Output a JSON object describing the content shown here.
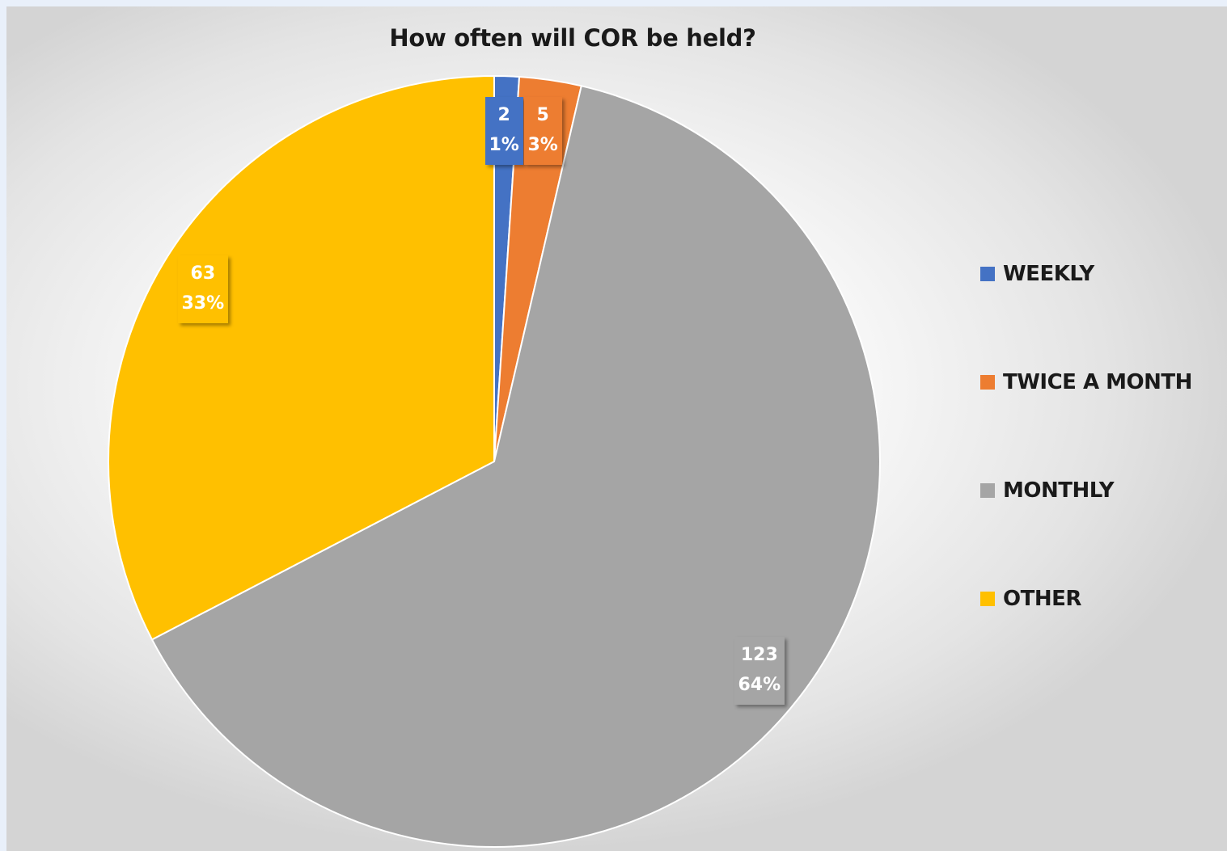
{
  "chart_data": {
    "type": "pie",
    "title": "How often will COR be held?",
    "slices": [
      {
        "name": "WEEKLY",
        "value": 2,
        "percent_label": "1%",
        "color": "#4472c4"
      },
      {
        "name": "TWICE A MONTH",
        "value": 5,
        "percent_label": "3%",
        "color": "#ed7d31"
      },
      {
        "name": "MONTHLY",
        "value": 123,
        "percent_label": "64%",
        "color": "#a5a5a5"
      },
      {
        "name": "OTHER",
        "value": 63,
        "percent_label": "33%",
        "color": "#ffc000"
      }
    ],
    "start_angle_deg": 0,
    "direction": "clockwise",
    "legend_position": "right",
    "data_labels": "value and percentage"
  }
}
